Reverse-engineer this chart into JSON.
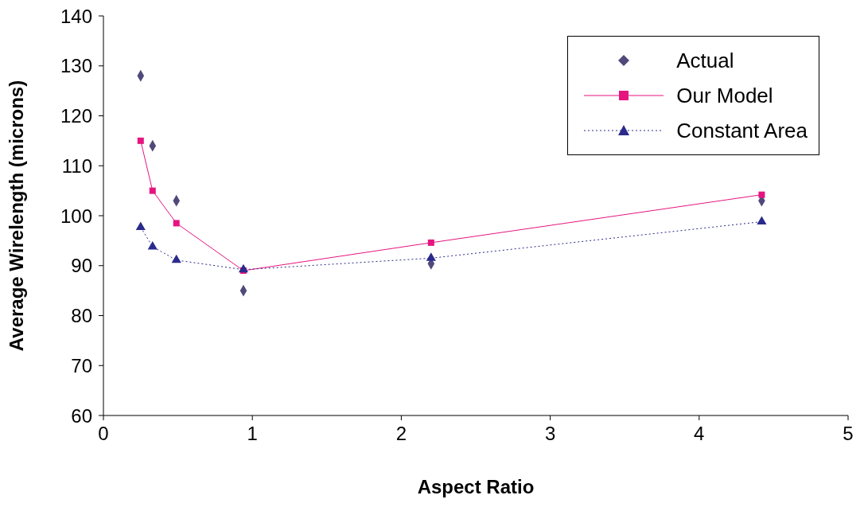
{
  "chart_data": {
    "type": "scatter",
    "xlabel": "Aspect Ratio",
    "ylabel": "Average Wirelength (microns)",
    "xlim": [
      0,
      5
    ],
    "xticks": [
      0,
      1,
      2,
      3,
      4,
      5
    ],
    "ylim": [
      60,
      140
    ],
    "yticks": [
      60,
      70,
      80,
      90,
      100,
      110,
      120,
      130,
      140
    ],
    "grid": false,
    "legend": "top right",
    "series": [
      {
        "name": "Actual",
        "marker": "diamond",
        "color": "#4f4a7a",
        "x": [
          0.25,
          0.33,
          0.49,
          0.94,
          2.2,
          4.42
        ],
        "values": [
          128,
          114,
          103,
          85,
          90.4,
          103
        ]
      },
      {
        "name": "Our Model",
        "type": "line",
        "marker": "square",
        "line_style": "solid",
        "color": "#e6147f",
        "x": [
          0.25,
          0.33,
          0.49,
          0.94,
          2.2,
          4.42
        ],
        "values": [
          115,
          105,
          98.5,
          89,
          94.6,
          104.2
        ]
      },
      {
        "name": "Constant Area",
        "type": "line",
        "marker": "triangle",
        "line_style": "dotted",
        "color": "#2a2a8c",
        "x": [
          0.25,
          0.33,
          0.49,
          0.94,
          2.2,
          4.42
        ],
        "values": [
          97.7,
          93.8,
          91.1,
          89.2,
          91.5,
          98.8
        ]
      }
    ]
  }
}
